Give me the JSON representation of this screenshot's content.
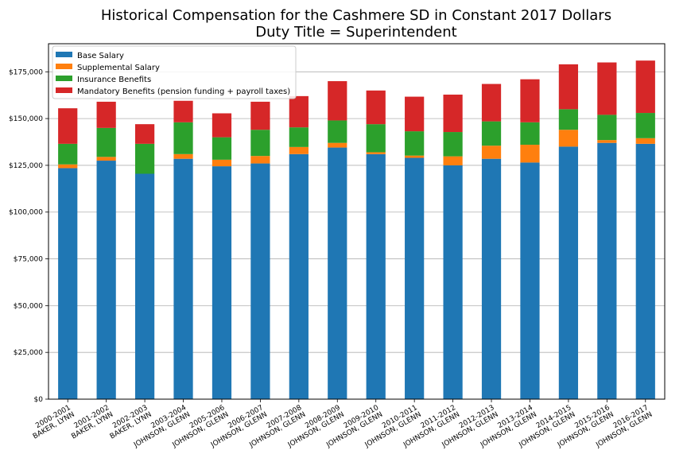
{
  "chart_data": {
    "type": "bar",
    "stacked": true,
    "title_line1": "Historical Compensation for the Cashmere SD in Constant 2017 Dollars",
    "title_line2": "Duty Title = Superintendent",
    "xlabel": "",
    "ylabel": "",
    "ylim": [
      0,
      190000
    ],
    "yticks": [
      "$0",
      "$25,000",
      "$50,000",
      "$75,000",
      "$100,000",
      "$125,000",
      "$150,000",
      "$175,000"
    ],
    "ytick_values": [
      0,
      25000,
      50000,
      75000,
      100000,
      125000,
      150000,
      175000
    ],
    "grid": "horizontal",
    "legend_position": "top-left",
    "categories": [
      [
        "2000-2001",
        "BAKER, LYNN"
      ],
      [
        "2001-2002",
        "BAKER, LYNN"
      ],
      [
        "2002-2003",
        "BAKER, LYNN"
      ],
      [
        "2003-2004",
        "JOHNSON, GLENN"
      ],
      [
        "2005-2006",
        "JOHNSON, GLENN"
      ],
      [
        "2006-2007",
        "JOHNSON, GLENN"
      ],
      [
        "2007-2008",
        "JOHNSON, GLENN"
      ],
      [
        "2008-2009",
        "JOHNSON, GLENN"
      ],
      [
        "2009-2010",
        "JOHNSON, GLENN"
      ],
      [
        "2010-2011",
        "JOHNSON, GLENN"
      ],
      [
        "2011-2012",
        "JOHNSON, GLENN"
      ],
      [
        "2012-2013",
        "JOHNSON, GLENN"
      ],
      [
        "2013-2014",
        "JOHNSON, GLENN"
      ],
      [
        "2014-2015",
        "JOHNSON, GLENN"
      ],
      [
        "2015-2016",
        "JOHNSON, GLENN"
      ],
      [
        "2016-2017",
        "JOHNSON, GLENN"
      ]
    ],
    "series": [
      {
        "name": "Base Salary",
        "color": "#1f77b4",
        "values": [
          123500,
          127500,
          120500,
          128500,
          124500,
          126000,
          131000,
          134500,
          131000,
          129000,
          125000,
          128500,
          126500,
          135000,
          137000,
          136500
        ]
      },
      {
        "name": "Supplemental Salary",
        "color": "#ff7f0e",
        "values": [
          2000,
          2000,
          0,
          2500,
          3500,
          4000,
          3800,
          2500,
          1000,
          1200,
          4800,
          7000,
          9500,
          9000,
          1500,
          3000
        ]
      },
      {
        "name": "Insurance Benefits",
        "color": "#2ca02c",
        "values": [
          11000,
          15500,
          16000,
          17000,
          12000,
          14000,
          10500,
          12000,
          15000,
          13000,
          13000,
          13000,
          12000,
          11000,
          13500,
          13500
        ]
      },
      {
        "name": "Mandatory Benefits (pension funding + payroll taxes)",
        "color": "#d62728",
        "values": [
          19000,
          14000,
          10500,
          11500,
          12800,
          15000,
          16700,
          21000,
          18000,
          18500,
          20000,
          20000,
          23000,
          24000,
          28000,
          28000
        ]
      }
    ]
  }
}
